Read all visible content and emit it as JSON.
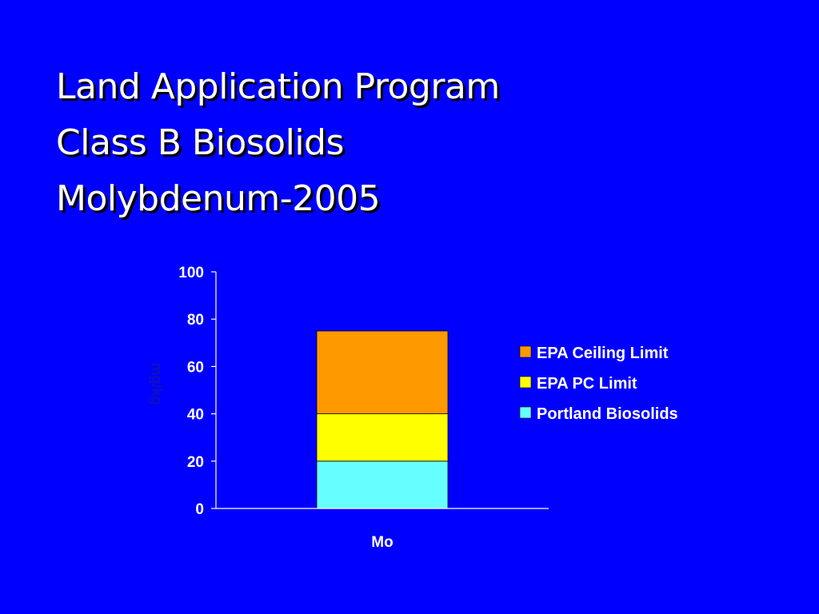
{
  "title_lines": [
    "Land Application Program",
    "Class B Biosolids",
    "Molybdenum-2005"
  ],
  "colors": {
    "background": "#0000FF",
    "text": "#FFFFFF",
    "axis_label": "#1010C0"
  },
  "chart_data": {
    "type": "bar",
    "stacked": true,
    "categories": [
      "Mo"
    ],
    "series": [
      {
        "name": "Portland Biosolids",
        "values": [
          20
        ],
        "color": "#66FFFF"
      },
      {
        "name": "EPA PC Limit",
        "values": [
          20
        ],
        "color": "#FFFF00"
      },
      {
        "name": "EPA Ceiling Limit",
        "values": [
          35
        ],
        "color": "#FF9900"
      }
    ],
    "ylabel": "mg/kg",
    "xlabel": "",
    "ylim": [
      0,
      100
    ],
    "yticks": [
      0,
      20,
      40,
      60,
      80,
      100
    ],
    "grid": false,
    "legend": "right"
  }
}
